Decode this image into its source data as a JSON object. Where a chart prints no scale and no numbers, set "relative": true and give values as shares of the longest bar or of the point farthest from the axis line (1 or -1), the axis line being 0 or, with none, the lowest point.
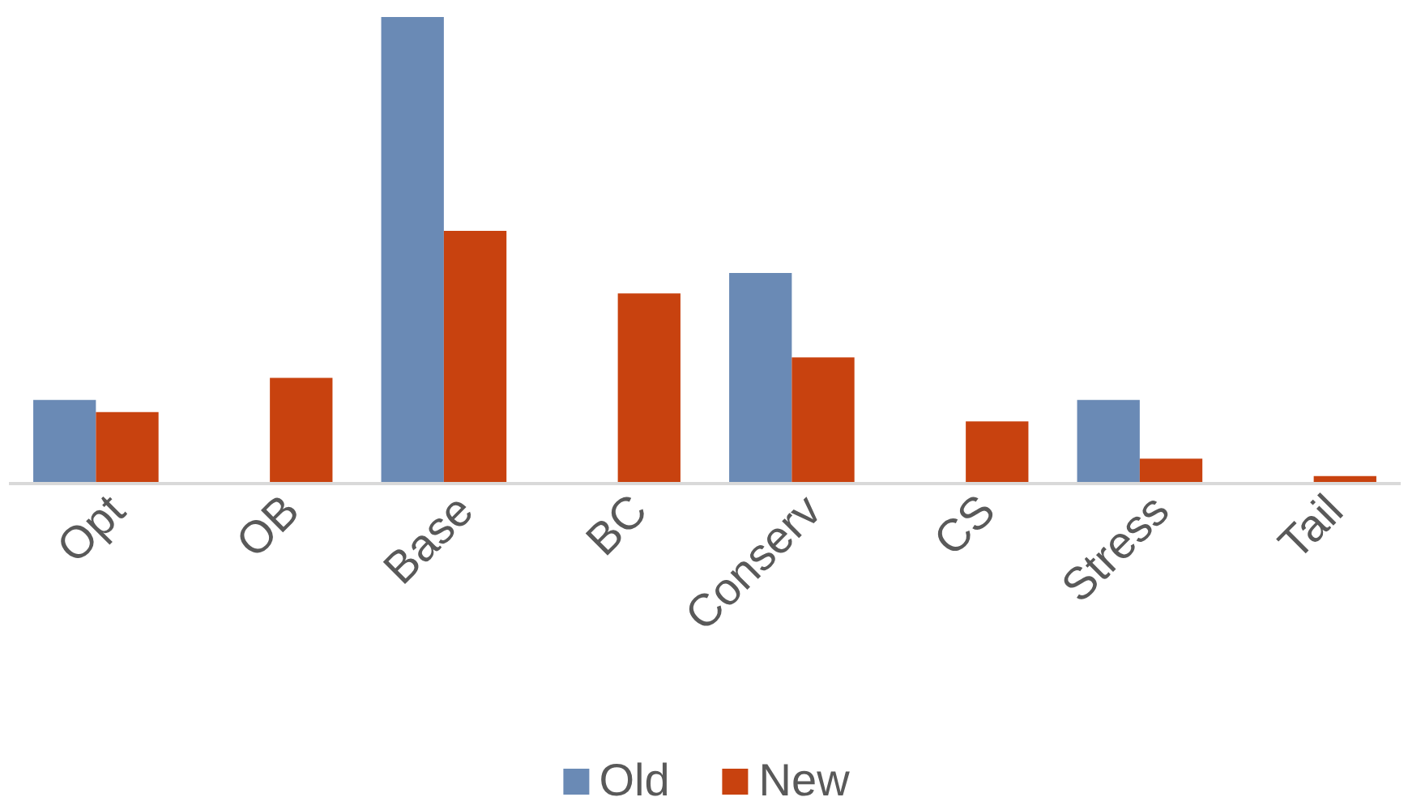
{
  "chart_data": {
    "type": "bar",
    "relative": true,
    "categories": [
      "Opt",
      "OB",
      "Base",
      "BC",
      "Conserv",
      "CS",
      "Stress",
      "Tail"
    ],
    "series": [
      {
        "name": "Old",
        "color": "#6a8ab5",
        "values": [
          0.18,
          null,
          1,
          null,
          0.452,
          null,
          0.18,
          null
        ]
      },
      {
        "name": "New",
        "color": "#c8420f",
        "values": [
          0.154,
          0.227,
          0.542,
          0.408,
          0.271,
          0.134,
          0.054,
          0.017
        ]
      }
    ],
    "legend": "bottom"
  }
}
